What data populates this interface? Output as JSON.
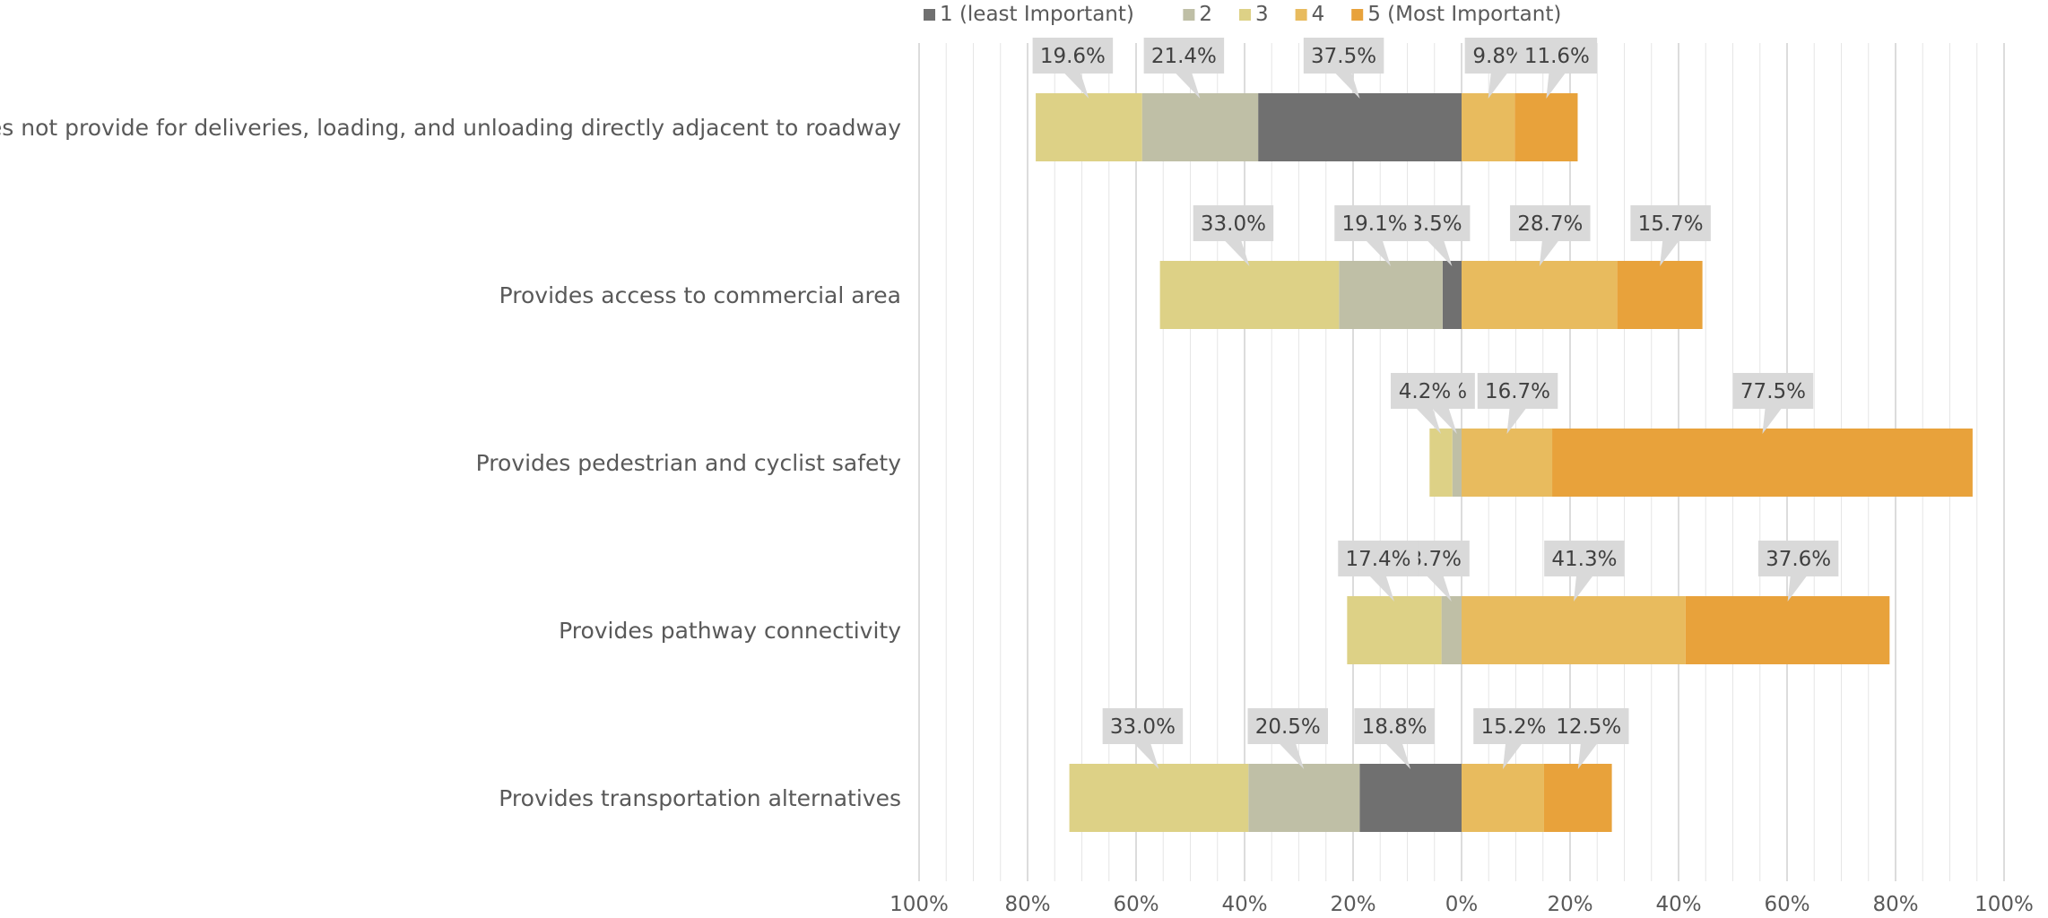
{
  "chart_data": {
    "type": "bar",
    "orientation": "horizontal",
    "stacking": "diverging",
    "categories": [
      "Does not provide for deliveries, loading, and unloading directly adjacent to roadway",
      "Provides access to commercial area",
      "Provides pedestrian and cyclist safety",
      "Provides pathway connectivity",
      "Provides transportation alternatives"
    ],
    "series": [
      {
        "name": "1 (least Important)",
        "side": "left",
        "color": "#707070",
        "values": [
          37.5,
          3.5,
          0,
          0,
          18.8
        ],
        "labels": [
          "37.5%",
          "3.5%",
          "",
          "",
          "18.8%"
        ]
      },
      {
        "name": "2",
        "side": "left",
        "color": "#BFBFA6",
        "values": [
          21.4,
          19.1,
          1.7,
          3.7,
          20.5
        ],
        "labels": [
          "21.4%",
          "19.1%",
          "1.7%",
          "3.7%",
          "20.5%"
        ]
      },
      {
        "name": "3",
        "side": "left",
        "color": "#DDD186",
        "values": [
          19.6,
          33.0,
          4.2,
          17.4,
          33.0
        ],
        "labels": [
          "19.6%",
          "33.0%",
          "4.2%",
          "17.4%",
          "33.0%"
        ]
      },
      {
        "name": "4",
        "side": "right",
        "color": "#E8BB5E",
        "values": [
          9.8,
          28.7,
          16.7,
          41.3,
          15.2
        ],
        "labels": [
          "9.8%",
          "28.7%",
          "16.7%",
          "41.3%",
          "15.2%"
        ]
      },
      {
        "name": "5 (Most Important)",
        "side": "right",
        "color": "#E8A23B",
        "values": [
          11.6,
          15.7,
          77.5,
          37.6,
          12.5
        ],
        "labels": [
          "11.6%",
          "15.7%",
          "77.5%",
          "37.6%",
          "12.5%"
        ]
      }
    ],
    "xlim": [
      -100,
      100
    ],
    "x_ticks": [
      -100,
      -80,
      -60,
      -40,
      -20,
      0,
      20,
      40,
      60,
      80,
      100
    ],
    "x_tick_labels": [
      "100%",
      "80%",
      "60%",
      "40%",
      "20%",
      "0%",
      "20%",
      "40%",
      "60%",
      "80%",
      "100%"
    ],
    "legend_position": "top",
    "grid": true,
    "title": "",
    "xlabel": "",
    "ylabel": ""
  }
}
